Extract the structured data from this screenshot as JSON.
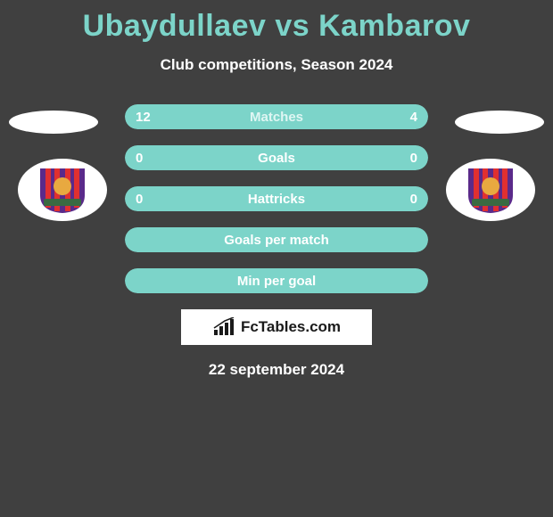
{
  "title": "Ubaydullaev vs Kambarov",
  "subtitle": "Club competitions, Season 2024",
  "date": "22 september 2024",
  "brand": "FcTables.com",
  "colors": {
    "accent": "#7cd4c9",
    "label_light": "#dff6f3",
    "text": "#ffffff",
    "background": "#404040",
    "crest_stripe1": "#5a2a8a",
    "crest_stripe2": "#e03030",
    "crest_ball": "#e8a940",
    "crest_banner": "#3a6a42"
  },
  "rows": [
    {
      "label": "Matches",
      "left_val": "12",
      "right_val": "4",
      "left_pct": 75,
      "right_pct": 25,
      "label_color": "#dff6f3"
    },
    {
      "label": "Goals",
      "left_val": "0",
      "right_val": "0",
      "left_pct": 0,
      "right_pct": 0,
      "label_color": "#ffffff",
      "full_bg": "#7cd4c9"
    },
    {
      "label": "Hattricks",
      "left_val": "0",
      "right_val": "0",
      "left_pct": 0,
      "right_pct": 0,
      "label_color": "#ffffff",
      "full_bg": "#7cd4c9"
    },
    {
      "label": "Goals per match",
      "left_val": "",
      "right_val": "",
      "left_pct": 0,
      "right_pct": 0,
      "label_color": "#ffffff",
      "full_bg": "#7cd4c9"
    },
    {
      "label": "Min per goal",
      "left_val": "",
      "right_val": "",
      "left_pct": 0,
      "right_pct": 0,
      "label_color": "#ffffff",
      "full_bg": "#7cd4c9"
    }
  ]
}
